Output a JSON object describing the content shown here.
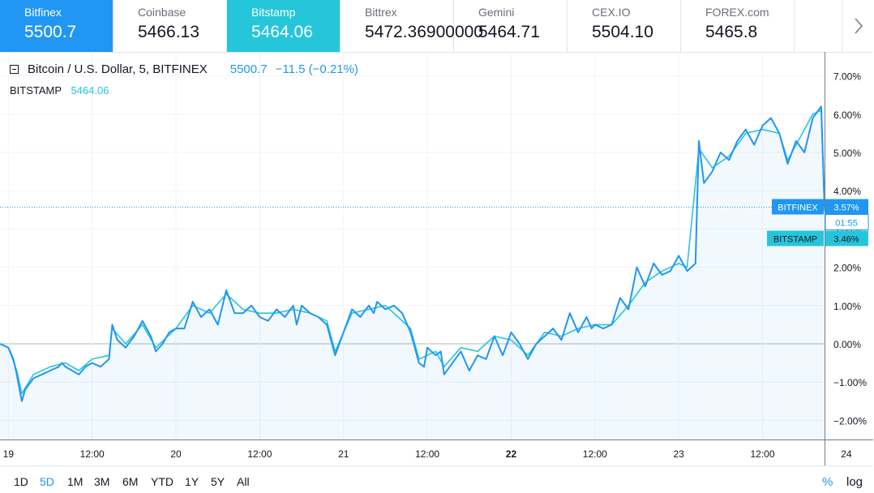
{
  "tabs": [
    {
      "name": "Bitfinex",
      "price": "5500.7",
      "state": "blue"
    },
    {
      "name": "Coinbase",
      "price": "5466.13",
      "state": ""
    },
    {
      "name": "Bitstamp",
      "price": "5464.06",
      "state": "teal"
    },
    {
      "name": "Bittrex",
      "price": "5472.36900000",
      "state": ""
    },
    {
      "name": "Gemini",
      "price": "5464.71",
      "state": ""
    },
    {
      "name": "CEX.IO",
      "price": "5504.10",
      "state": ""
    },
    {
      "name": "FOREX.com",
      "price": "5465.8",
      "state": ""
    }
  ],
  "legend": {
    "symbol": "Bitcoin / U.S. Dollar, 5, BITFINEX",
    "value": "5500.7",
    "change": "−11.5 (−0.21%)",
    "compare_symbol": "BITSTAMP",
    "compare_value": "5464.06"
  },
  "ranges": [
    {
      "label": "1D",
      "active": false
    },
    {
      "label": "5D",
      "active": true
    },
    {
      "label": "1M",
      "active": false
    },
    {
      "label": "3M",
      "active": false
    },
    {
      "label": "6M",
      "active": false
    },
    {
      "label": "YTD",
      "active": false
    },
    {
      "label": "1Y",
      "active": false
    },
    {
      "label": "5Y",
      "active": false
    },
    {
      "label": "All",
      "active": false
    }
  ],
  "scale_buttons": {
    "percent": "%",
    "log": "log"
  },
  "chart_data": {
    "type": "line",
    "y_unit": "%",
    "ylim": [
      -2.5,
      7.5
    ],
    "y_ticks": [
      -2,
      -1,
      0,
      1,
      2,
      3,
      4,
      5,
      6,
      7
    ],
    "y_tick_labels": [
      "−2.00%",
      "−1.00%",
      "0.00%",
      "1.00%",
      "2.00%",
      "3.00%",
      "4.00%",
      "5.00%",
      "6.00%",
      "7.00%"
    ],
    "xlim": [
      0.95,
      5.87
    ],
    "x_ticks": [
      1.0,
      1.5,
      2.0,
      2.5,
      3.0,
      3.5,
      4.0,
      4.5,
      5.0,
      5.5,
      6.0
    ],
    "x_tick_labels": [
      "19",
      "12:00",
      "20",
      "12:00",
      "21",
      "12:00",
      "22",
      "12:00",
      "23",
      "12:00",
      "24"
    ],
    "x_tick_bold": [
      "22"
    ],
    "grid": true,
    "countdown": "01:55",
    "series": [
      {
        "name": "BITFINEX",
        "color": "#2196f3",
        "last_value": 3.57,
        "last_label": "3.57%",
        "x": [
          0.95,
          1.0,
          1.03,
          1.05,
          1.08,
          1.1,
          1.15,
          1.2,
          1.25,
          1.3,
          1.32,
          1.34,
          1.38,
          1.42,
          1.46,
          1.5,
          1.55,
          1.6,
          1.62,
          1.65,
          1.7,
          1.75,
          1.8,
          1.85,
          1.88,
          1.92,
          1.96,
          2.0,
          2.05,
          2.1,
          2.15,
          2.2,
          2.25,
          2.3,
          2.35,
          2.4,
          2.45,
          2.5,
          2.55,
          2.6,
          2.65,
          2.7,
          2.72,
          2.75,
          2.8,
          2.85,
          2.9,
          2.95,
          3.0,
          3.05,
          3.1,
          3.15,
          3.18,
          3.2,
          3.25,
          3.3,
          3.35,
          3.4,
          3.45,
          3.48,
          3.5,
          3.55,
          3.58,
          3.6,
          3.65,
          3.7,
          3.75,
          3.8,
          3.85,
          3.9,
          3.95,
          4.0,
          4.05,
          4.1,
          4.15,
          4.2,
          4.25,
          4.3,
          4.35,
          4.4,
          4.45,
          4.48,
          4.5,
          4.55,
          4.6,
          4.65,
          4.7,
          4.75,
          4.8,
          4.85,
          4.9,
          4.95,
          5.0,
          5.05,
          5.1,
          5.12,
          5.15,
          5.2,
          5.25,
          5.3,
          5.35,
          5.4,
          5.45,
          5.5,
          5.55,
          5.6,
          5.65,
          5.7,
          5.75,
          5.8,
          5.85,
          5.87
        ],
        "y": [
          0.0,
          -0.1,
          -0.4,
          -0.8,
          -1.5,
          -1.2,
          -0.9,
          -0.8,
          -0.7,
          -0.6,
          -0.5,
          -0.6,
          -0.7,
          -0.8,
          -0.6,
          -0.5,
          -0.6,
          -0.4,
          0.5,
          0.1,
          -0.1,
          0.2,
          0.6,
          0.2,
          -0.2,
          0.0,
          0.3,
          0.4,
          0.4,
          1.1,
          0.7,
          0.9,
          0.5,
          1.4,
          0.8,
          0.8,
          1.0,
          0.7,
          0.6,
          0.9,
          0.7,
          1.0,
          0.5,
          1.0,
          0.8,
          0.7,
          0.5,
          -0.3,
          0.3,
          0.9,
          0.7,
          1.0,
          0.8,
          1.1,
          0.9,
          1.0,
          0.8,
          0.3,
          -0.5,
          -0.6,
          -0.1,
          -0.3,
          -0.2,
          -0.8,
          -0.5,
          -0.2,
          -0.7,
          -0.3,
          -0.4,
          0.2,
          -0.3,
          0.3,
          0.0,
          -0.4,
          0.0,
          0.2,
          0.4,
          0.1,
          0.8,
          0.3,
          0.7,
          0.4,
          0.5,
          0.4,
          0.5,
          1.2,
          0.9,
          2.0,
          1.5,
          2.1,
          1.8,
          1.9,
          2.3,
          1.9,
          2.1,
          5.3,
          4.2,
          4.5,
          5.0,
          4.8,
          5.3,
          5.6,
          5.2,
          5.7,
          5.9,
          5.5,
          4.7,
          5.3,
          5.0,
          5.9,
          6.2,
          3.57
        ]
      },
      {
        "name": "BITSTAMP",
        "color": "#26c6da",
        "last_value": 3.46,
        "last_label": "3.46%",
        "x": [
          0.95,
          1.0,
          1.05,
          1.08,
          1.15,
          1.25,
          1.34,
          1.42,
          1.5,
          1.6,
          1.62,
          1.7,
          1.8,
          1.88,
          2.0,
          2.1,
          2.2,
          2.3,
          2.4,
          2.5,
          2.6,
          2.7,
          2.8,
          2.9,
          2.95,
          3.05,
          3.15,
          3.25,
          3.4,
          3.45,
          3.55,
          3.6,
          3.7,
          3.8,
          3.9,
          4.0,
          4.1,
          4.2,
          4.3,
          4.4,
          4.5,
          4.6,
          4.7,
          4.8,
          4.9,
          5.0,
          5.05,
          5.12,
          5.2,
          5.3,
          5.4,
          5.5,
          5.6,
          5.65,
          5.7,
          5.8,
          5.85,
          5.87
        ],
        "y": [
          0.0,
          -0.1,
          -0.7,
          -1.3,
          -0.8,
          -0.6,
          -0.5,
          -0.7,
          -0.4,
          -0.3,
          0.4,
          0.0,
          0.5,
          -0.1,
          0.4,
          1.0,
          0.8,
          1.3,
          0.9,
          0.8,
          0.8,
          0.9,
          0.8,
          0.6,
          -0.2,
          0.8,
          0.9,
          1.0,
          0.4,
          -0.4,
          -0.2,
          -0.6,
          -0.1,
          -0.2,
          0.2,
          0.1,
          -0.3,
          0.3,
          0.2,
          0.4,
          0.5,
          0.5,
          1.0,
          1.6,
          1.9,
          2.1,
          2.0,
          5.1,
          4.6,
          4.9,
          5.5,
          5.6,
          5.5,
          4.8,
          5.2,
          6.0,
          6.1,
          3.46
        ]
      }
    ]
  }
}
